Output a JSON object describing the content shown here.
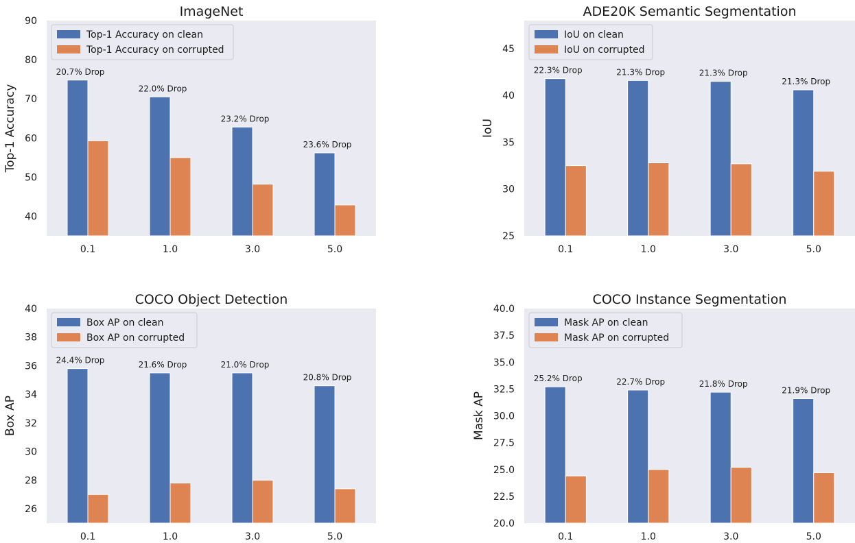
{
  "colors": {
    "clean": "#4c72b0",
    "corrupted": "#dd8452",
    "plot_bg": "#eaeaf2"
  },
  "chart_data": [
    {
      "type": "bar",
      "title": "ImageNet",
      "ylabel": "Top-1 Accuracy",
      "xlabel": "",
      "categories": [
        "0.1",
        "1.0",
        "3.0",
        "5.0"
      ],
      "ylim": [
        35,
        90
      ],
      "yticks": [
        "40",
        "50",
        "60",
        "70",
        "80",
        "90"
      ],
      "series": [
        {
          "name": "Top-1 Accuracy on clean",
          "values": [
            74.8,
            70.5,
            62.8,
            56.2
          ]
        },
        {
          "name": "Top-1 Accuracy on corrupted",
          "values": [
            59.3,
            55.0,
            48.2,
            42.9
          ]
        }
      ],
      "annotations": [
        "20.7% Drop",
        "22.0% Drop",
        "23.2% Drop",
        "23.6% Drop"
      ],
      "legend": "top-left",
      "grid": false
    },
    {
      "type": "bar",
      "title": "ADE20K Semantic Segmentation",
      "ylabel": "IoU",
      "xlabel": "",
      "categories": [
        "0.1",
        "1.0",
        "3.0",
        "5.0"
      ],
      "ylim": [
        25,
        48
      ],
      "yticks": [
        "25",
        "30",
        "35",
        "40",
        "45"
      ],
      "series": [
        {
          "name": "IoU on clean",
          "values": [
            41.8,
            41.6,
            41.5,
            40.6
          ]
        },
        {
          "name": "IoU on corrupted",
          "values": [
            32.5,
            32.8,
            32.7,
            31.9
          ]
        }
      ],
      "annotations": [
        "22.3% Drop",
        "21.3% Drop",
        "21.3% Drop",
        "21.3% Drop"
      ],
      "legend": "top-left",
      "grid": false
    },
    {
      "type": "bar",
      "title": "COCO Object Detection",
      "ylabel": "Box AP",
      "xlabel": "",
      "categories": [
        "0.1",
        "1.0",
        "3.0",
        "5.0"
      ],
      "ylim": [
        25,
        40
      ],
      "yticks": [
        "26",
        "28",
        "30",
        "32",
        "34",
        "36",
        "38",
        "40"
      ],
      "series": [
        {
          "name": "Box AP on clean",
          "values": [
            35.8,
            35.5,
            35.5,
            34.6
          ]
        },
        {
          "name": "Box AP on corrupted",
          "values": [
            27.0,
            27.8,
            28.0,
            27.4
          ]
        }
      ],
      "annotations": [
        "24.4% Drop",
        "21.6% Drop",
        "21.0% Drop",
        "20.8% Drop"
      ],
      "legend": "top-left",
      "grid": false
    },
    {
      "type": "bar",
      "title": "COCO Instance Segmentation",
      "ylabel": "Mask AP",
      "xlabel": "",
      "categories": [
        "0.1",
        "1.0",
        "3.0",
        "5.0"
      ],
      "ylim": [
        20,
        40
      ],
      "yticks": [
        "20.0",
        "22.5",
        "25.0",
        "27.5",
        "30.0",
        "32.5",
        "35.0",
        "37.5",
        "40.0"
      ],
      "series": [
        {
          "name": "Mask AP on clean",
          "values": [
            32.7,
            32.4,
            32.2,
            31.6
          ]
        },
        {
          "name": "Mask AP on corrupted",
          "values": [
            24.4,
            25.0,
            25.2,
            24.7
          ]
        }
      ],
      "annotations": [
        "25.2% Drop",
        "22.7% Drop",
        "21.8% Drop",
        "21.9% Drop"
      ],
      "legend": "top-left",
      "grid": false
    }
  ]
}
